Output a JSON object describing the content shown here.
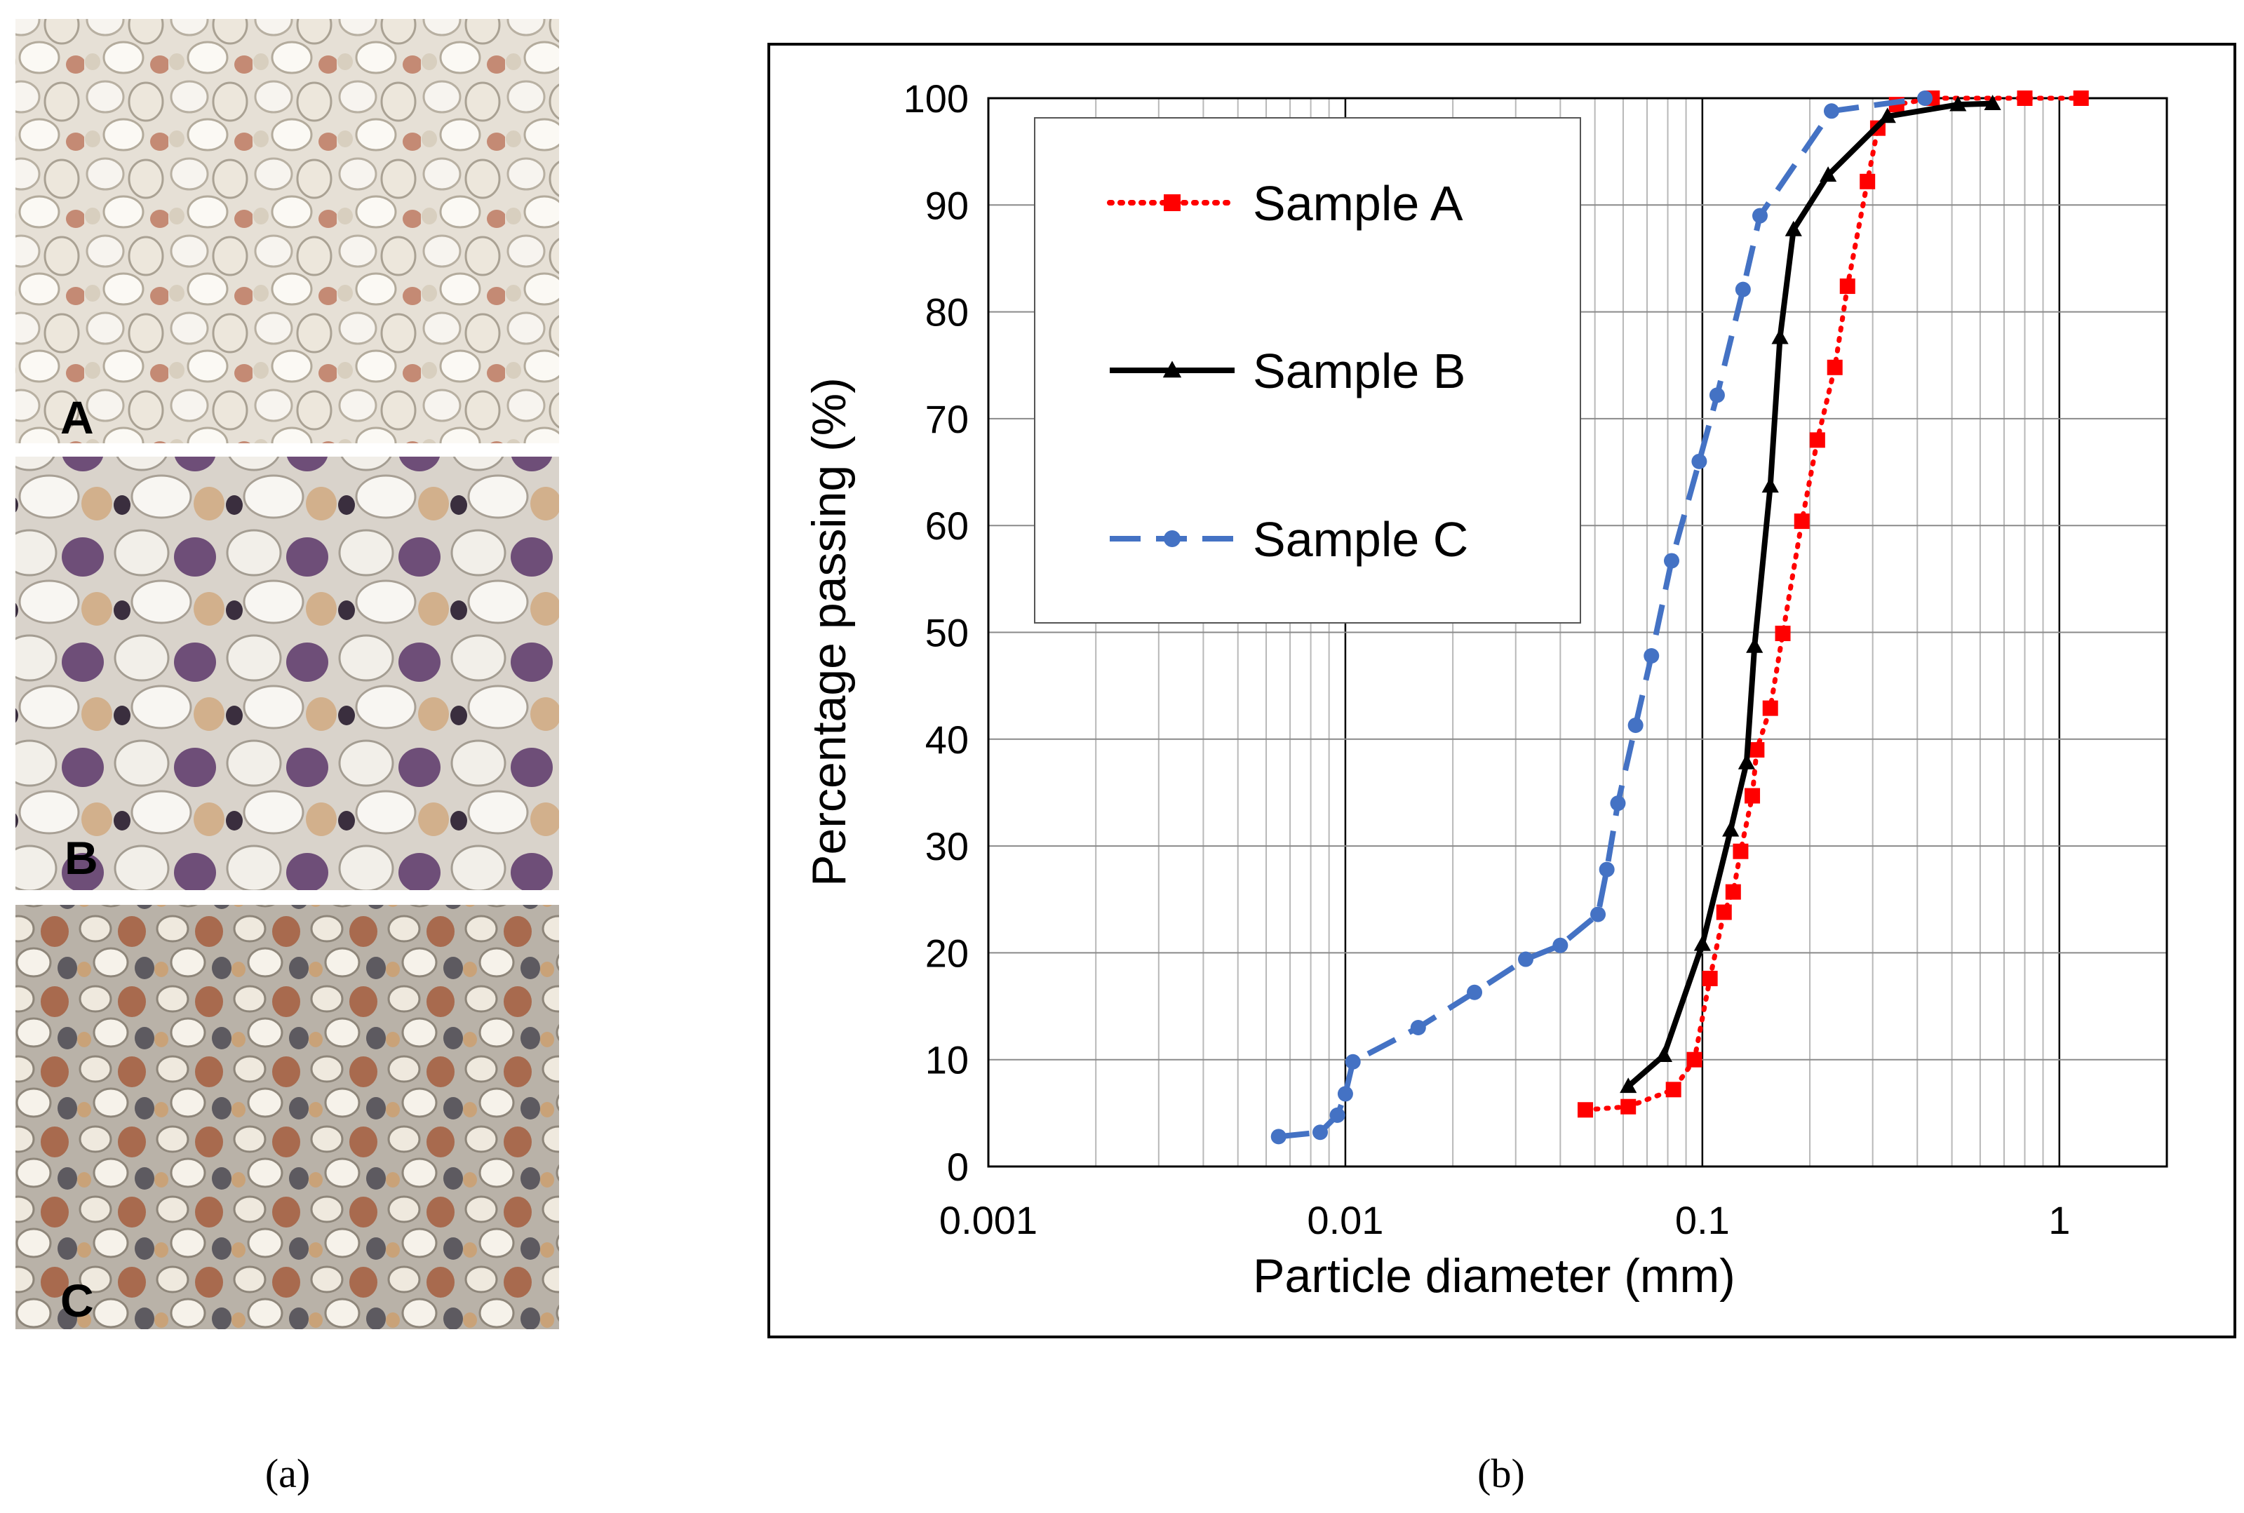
{
  "panels": {
    "a": {
      "caption": "(a)",
      "labels": [
        "A",
        "B",
        "C"
      ]
    },
    "b": {
      "caption": "(b)"
    }
  },
  "colors": {
    "sample_a": "#ff0000",
    "sample_b": "#000000",
    "sample_c": "#4472c4"
  },
  "chart_data": {
    "type": "line",
    "title": "",
    "xlabel": "Particle diameter (mm)",
    "ylabel": "Percentage passing (%)",
    "x_scale": "log",
    "xlim": [
      0.001,
      2
    ],
    "ylim": [
      0,
      100
    ],
    "x_ticks": [
      {
        "value": 0.001,
        "label": "0.001"
      },
      {
        "value": 0.01,
        "label": "0.01"
      },
      {
        "value": 0.1,
        "label": "0.1"
      },
      {
        "value": 1,
        "label": "1"
      }
    ],
    "y_ticks": [
      {
        "value": 0,
        "label": "0"
      },
      {
        "value": 10,
        "label": "10"
      },
      {
        "value": 20,
        "label": "20"
      },
      {
        "value": 30,
        "label": "30"
      },
      {
        "value": 40,
        "label": "40"
      },
      {
        "value": 50,
        "label": "50"
      },
      {
        "value": 60,
        "label": "60"
      },
      {
        "value": 70,
        "label": "70"
      },
      {
        "value": 80,
        "label": "80"
      },
      {
        "value": 90,
        "label": "90"
      },
      {
        "value": 100,
        "label": "100"
      }
    ],
    "grid": true,
    "legend_position": "top-left",
    "series": [
      {
        "name": "Sample A",
        "color": "#ff0000",
        "line_style": "dotted",
        "marker": "square",
        "x": [
          0.047,
          0.062,
          0.083,
          0.095,
          0.105,
          0.115,
          0.122,
          0.128,
          0.138,
          0.142,
          0.155,
          0.168,
          0.19,
          0.21,
          0.235,
          0.255,
          0.29,
          0.31,
          0.35,
          0.44,
          0.8,
          1.15
        ],
        "y": [
          5.3,
          5.6,
          7.2,
          10,
          17.6,
          23.8,
          25.7,
          29.5,
          34.7,
          39,
          42.9,
          49.9,
          60.4,
          68,
          74.8,
          82.4,
          92.2,
          97.2,
          99.4,
          100,
          100,
          100
        ]
      },
      {
        "name": "Sample B",
        "color": "#000000",
        "line_style": "solid",
        "marker": "triangle",
        "x": [
          0.062,
          0.078,
          0.1,
          0.12,
          0.133,
          0.14,
          0.155,
          0.165,
          0.18,
          0.225,
          0.33,
          0.52,
          0.65
        ],
        "y": [
          7.5,
          10.4,
          20.8,
          31.5,
          37.8,
          48.7,
          63.7,
          77.6,
          87.7,
          92.8,
          98.3,
          99.4,
          99.5
        ]
      },
      {
        "name": "Sample C",
        "color": "#4472c4",
        "line_style": "dashed",
        "marker": "circle",
        "x": [
          0.0065,
          0.0085,
          0.0095,
          0.01,
          0.0105,
          0.016,
          0.023,
          0.032,
          0.04,
          0.051,
          0.054,
          0.058,
          0.065,
          0.072,
          0.082,
          0.098,
          0.11,
          0.13,
          0.145,
          0.23,
          0.42
        ],
        "y": [
          2.8,
          3.2,
          4.8,
          6.8,
          9.8,
          13,
          16.3,
          19.4,
          20.7,
          23.6,
          27.8,
          34,
          41.3,
          47.8,
          56.7,
          66,
          72.2,
          82.1,
          89,
          98.8,
          100
        ]
      }
    ]
  }
}
